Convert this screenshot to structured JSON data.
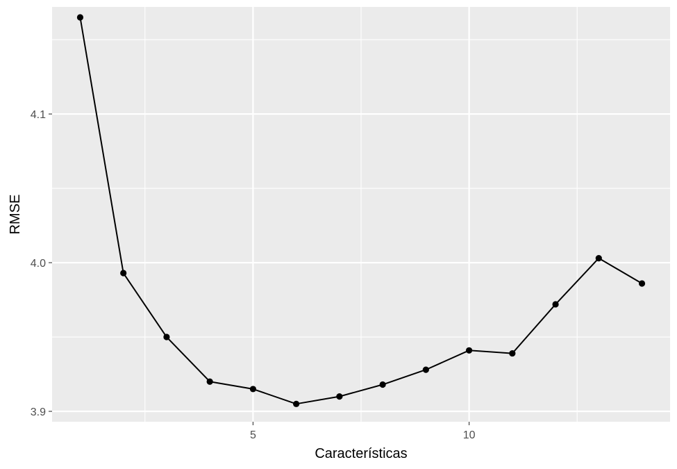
{
  "chart_data": {
    "type": "line",
    "title": "",
    "xlabel": "Características",
    "ylabel": "RMSE",
    "x": [
      1,
      2,
      3,
      4,
      5,
      6,
      7,
      8,
      9,
      10,
      11,
      12,
      13,
      14
    ],
    "series": [
      {
        "values": [
          4.165,
          3.993,
          3.95,
          3.92,
          3.915,
          3.905,
          3.91,
          3.918,
          3.928,
          3.941,
          3.939,
          3.972,
          4.003,
          3.986
        ]
      }
    ],
    "xlim": [
      0.35,
      14.65
    ],
    "ylim": [
      3.893,
      4.172
    ],
    "x_major_ticks": [
      5,
      10
    ],
    "x_minor_ticks": [
      2.5,
      7.5,
      12.5
    ],
    "x_tick_labels": [
      "5",
      "10"
    ],
    "y_major_ticks": [
      3.9,
      4.0,
      4.1
    ],
    "y_minor_ticks": [
      3.95,
      4.05,
      4.15
    ],
    "y_tick_labels": [
      "3.9",
      "4.0",
      "4.1"
    ],
    "grid": true,
    "legend": "none",
    "colors": {
      "panel_background": "#ebebeb",
      "grid_line": "#ffffff",
      "series_line": "#000000",
      "point": "#000000",
      "tick_mark": "#333333",
      "tick_label": "#4d4d4d"
    }
  }
}
